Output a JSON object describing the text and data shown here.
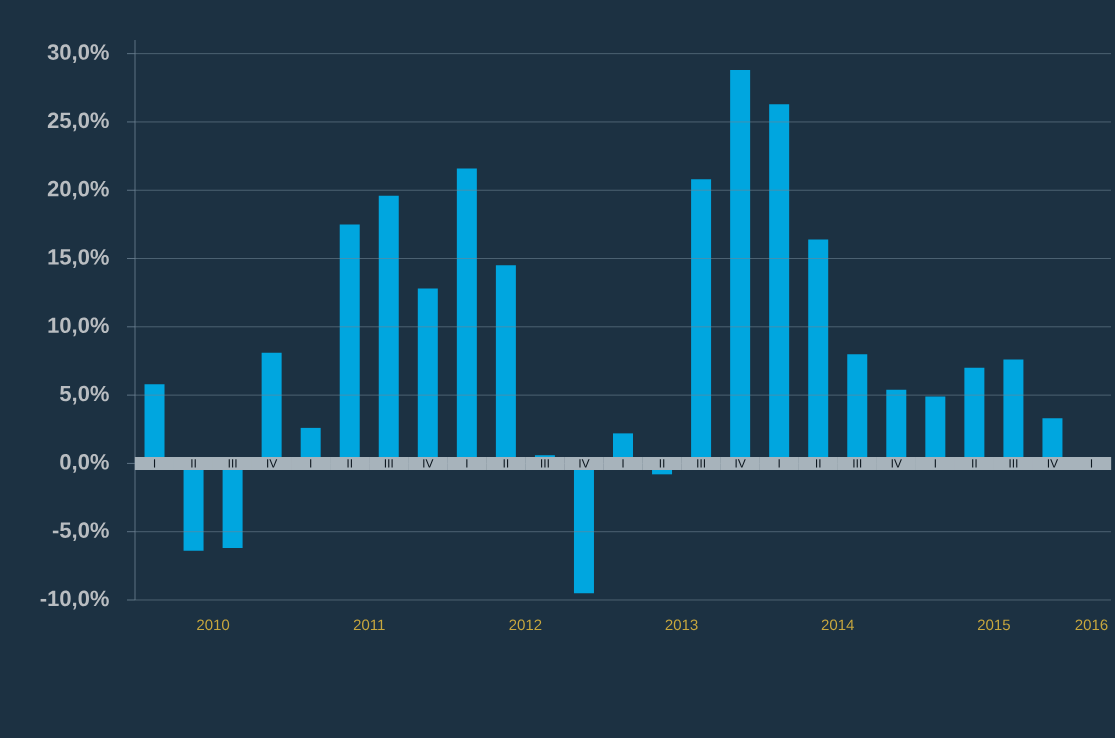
{
  "chart_data": {
    "type": "bar",
    "categories": [
      "I",
      "II",
      "III",
      "IV",
      "I",
      "II",
      "III",
      "IV",
      "I",
      "II",
      "III",
      "IV",
      "I",
      "II",
      "III",
      "IV",
      "I",
      "II",
      "III",
      "IV",
      "I",
      "II",
      "III",
      "IV",
      "I"
    ],
    "values": [
      5.8,
      -6.4,
      -6.2,
      8.1,
      2.6,
      17.5,
      19.6,
      12.8,
      21.6,
      14.5,
      0.6,
      -9.5,
      2.2,
      -0.8,
      20.8,
      28.8,
      26.3,
      16.4,
      8.0,
      5.4,
      4.9,
      7.0,
      7.6,
      3.3,
      null
    ],
    "color": "#00a6df",
    "ylim": [
      -10,
      31
    ],
    "yticks": [
      {
        "value": -10,
        "label": "-10,0%"
      },
      {
        "value": -5,
        "label": "-5,0%"
      },
      {
        "value": 0,
        "label": "0,0%"
      },
      {
        "value": 5,
        "label": "5,0%"
      },
      {
        "value": 10,
        "label": "10,0%"
      },
      {
        "value": 15,
        "label": "15,0%"
      },
      {
        "value": 20,
        "label": "20,0%"
      },
      {
        "value": 25,
        "label": "25,0%"
      },
      {
        "value": 30,
        "label": "30,0%"
      }
    ],
    "grid": "y",
    "annotations": [
      "2010",
      "2011",
      "2012",
      "2013",
      "2014",
      "2015",
      "2016"
    ]
  }
}
